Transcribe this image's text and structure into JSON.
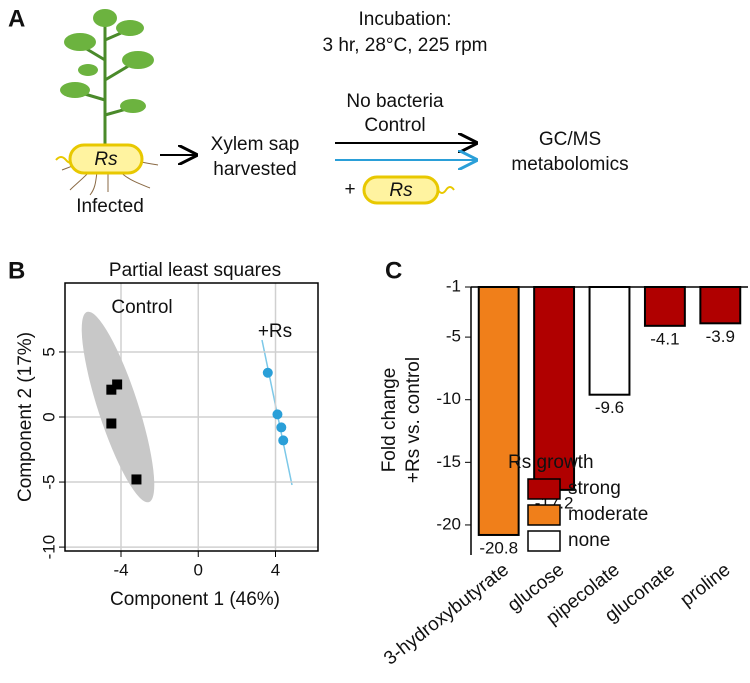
{
  "diagram": {
    "panel": "A",
    "incubation_title": "Incubation:",
    "incubation_conditions": "3 hr, 28°C, 225 rpm",
    "pathogen": "Rs",
    "plant_label": "Infected",
    "sample": [
      "Xylem sap",
      "harvested"
    ],
    "control_arrow": [
      "No bacteria",
      "Control"
    ],
    "treatment_prefix": "+",
    "treatment_pathogen": "Rs",
    "output": [
      "GC/MS",
      "metabolomics"
    ]
  },
  "chart_data": [
    {
      "type": "scatter",
      "panel": "B",
      "title": "Partial least squares",
      "x_label": "Component 1 (46%)",
      "y_label": "Component 2 (17%)",
      "xlim": [
        -6.9,
        6.2
      ],
      "ylim": [
        -10.3,
        10.3
      ],
      "xticks": [
        -4,
        0,
        4
      ],
      "yticks": [
        -10,
        -5,
        0,
        5
      ],
      "grid": true,
      "series": [
        {
          "name": "Control",
          "color": "#000000",
          "marker": "square",
          "x": [
            -4.5,
            -4.2,
            -4.5,
            -3.2
          ],
          "values": [
            2.1,
            2.5,
            -0.5,
            -4.8
          ]
        },
        {
          "name": "+Rs",
          "color": "#2a9fd8",
          "marker": "circle",
          "x": [
            3.6,
            4.1,
            4.3,
            4.4
          ],
          "values": [
            3.4,
            0.2,
            -0.8,
            -1.8
          ]
        }
      ]
    },
    {
      "type": "bar",
      "panel": "C",
      "y_label": [
        "Fold change",
        "+Rs vs. control"
      ],
      "categories": [
        "3-hydroxybutyrate",
        "glucose",
        "pipecolate",
        "gluconate",
        "proline"
      ],
      "values": [
        -20.8,
        -17.2,
        -9.6,
        -4.1,
        -3.9
      ],
      "bar_colors": [
        "#f07f1a",
        "#b00000",
        "#ffffff",
        "#b00000",
        "#b00000"
      ],
      "ylim": [
        -22.4,
        -1
      ],
      "yticks": [
        -20,
        -15,
        -10,
        -5,
        -1
      ],
      "legend_title": "Rs growth",
      "legend": [
        {
          "name": "strong",
          "color": "#b00000"
        },
        {
          "name": "moderate",
          "color": "#f07f1a"
        },
        {
          "name": "none",
          "color": "#ffffff"
        }
      ]
    }
  ]
}
